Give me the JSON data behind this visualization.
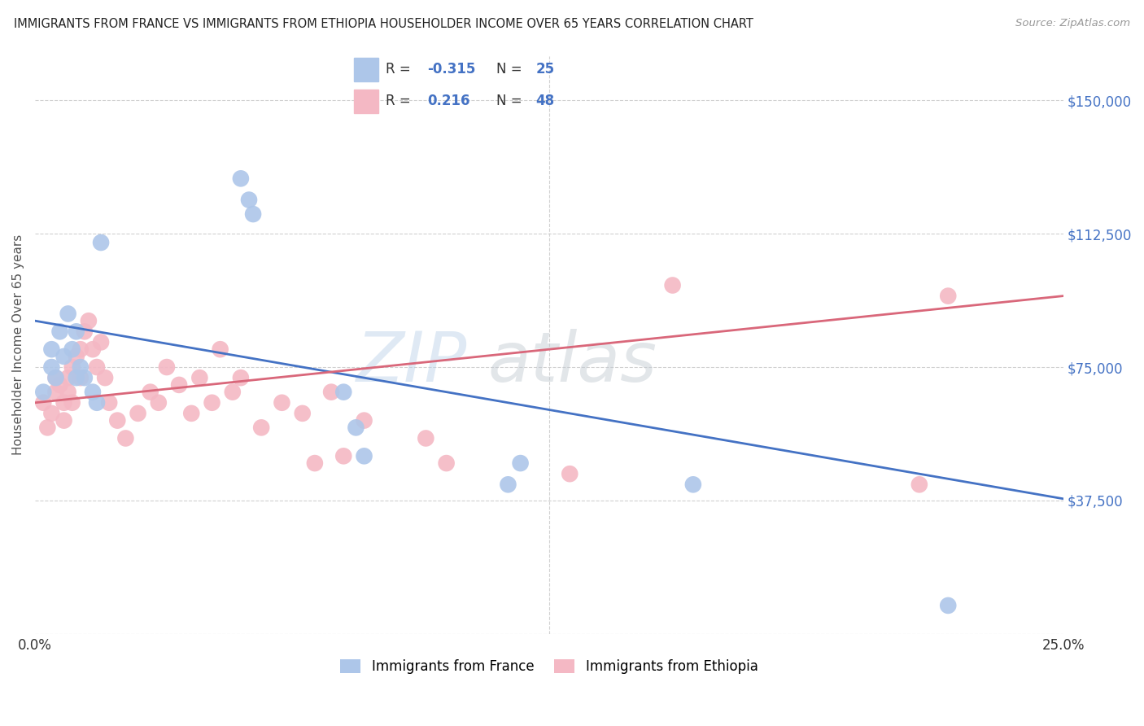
{
  "title": "IMMIGRANTS FROM FRANCE VS IMMIGRANTS FROM ETHIOPIA HOUSEHOLDER INCOME OVER 65 YEARS CORRELATION CHART",
  "source": "Source: ZipAtlas.com",
  "ylabel": "Householder Income Over 65 years",
  "xlim": [
    0,
    0.25
  ],
  "ylim": [
    0,
    162500
  ],
  "yticks": [
    0,
    37500,
    75000,
    112500,
    150000
  ],
  "ytick_labels_right": [
    "$37,500",
    "$75,000",
    "$112,500",
    "$150,000"
  ],
  "xticks": [
    0.0,
    0.05,
    0.1,
    0.15,
    0.2,
    0.25
  ],
  "xtick_labels": [
    "0.0%",
    "",
    "",
    "",
    "",
    "25.0%"
  ],
  "france_R": -0.315,
  "france_N": 25,
  "ethiopia_R": 0.216,
  "ethiopia_N": 48,
  "france_color": "#adc6e9",
  "ethiopia_color": "#f4b8c4",
  "france_line_color": "#4472c4",
  "ethiopia_line_color": "#d9677a",
  "bg_color": "#ffffff",
  "grid_color": "#d0d0d0",
  "france_x": [
    0.002,
    0.004,
    0.004,
    0.005,
    0.006,
    0.007,
    0.008,
    0.009,
    0.01,
    0.01,
    0.011,
    0.012,
    0.014,
    0.015,
    0.016,
    0.05,
    0.052,
    0.053,
    0.075,
    0.078,
    0.08,
    0.115,
    0.118,
    0.16,
    0.222
  ],
  "france_y": [
    68000,
    75000,
    80000,
    72000,
    85000,
    78000,
    90000,
    80000,
    85000,
    72000,
    75000,
    72000,
    68000,
    65000,
    110000,
    128000,
    122000,
    118000,
    68000,
    58000,
    50000,
    42000,
    48000,
    42000,
    8000
  ],
  "ethiopia_x": [
    0.002,
    0.003,
    0.004,
    0.005,
    0.005,
    0.006,
    0.007,
    0.007,
    0.008,
    0.008,
    0.009,
    0.009,
    0.01,
    0.011,
    0.011,
    0.012,
    0.013,
    0.014,
    0.015,
    0.016,
    0.017,
    0.018,
    0.02,
    0.022,
    0.025,
    0.028,
    0.03,
    0.032,
    0.035,
    0.038,
    0.04,
    0.043,
    0.045,
    0.048,
    0.05,
    0.055,
    0.06,
    0.065,
    0.068,
    0.072,
    0.075,
    0.08,
    0.095,
    0.1,
    0.13,
    0.155,
    0.215,
    0.222
  ],
  "ethiopia_y": [
    65000,
    58000,
    62000,
    68000,
    72000,
    70000,
    65000,
    60000,
    72000,
    68000,
    75000,
    65000,
    78000,
    72000,
    80000,
    85000,
    88000,
    80000,
    75000,
    82000,
    72000,
    65000,
    60000,
    55000,
    62000,
    68000,
    65000,
    75000,
    70000,
    62000,
    72000,
    65000,
    80000,
    68000,
    72000,
    58000,
    65000,
    62000,
    48000,
    68000,
    50000,
    60000,
    55000,
    48000,
    45000,
    98000,
    42000,
    95000
  ]
}
